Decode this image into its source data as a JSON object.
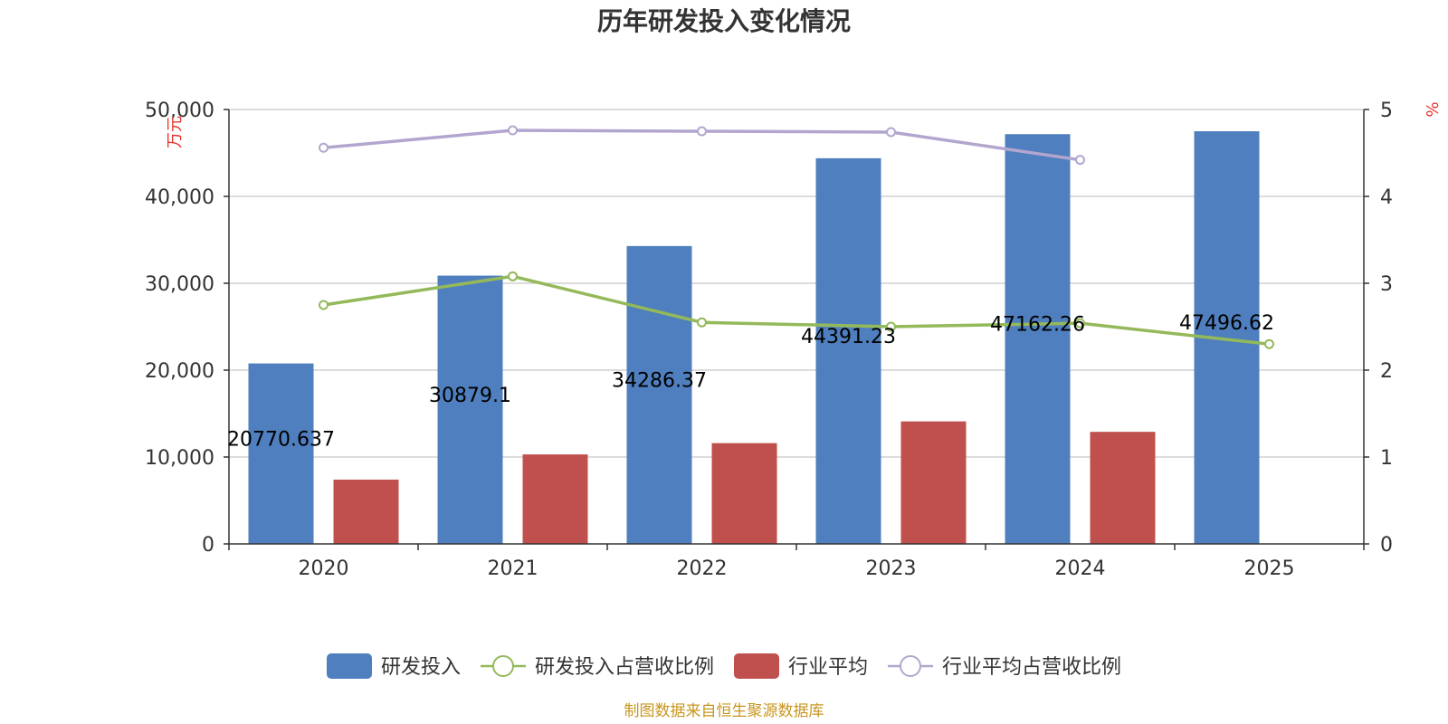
{
  "chart_data": {
    "type": "bar",
    "title": "历年研发投入变化情况",
    "categories": [
      "2020",
      "2021",
      "2022",
      "2023",
      "2024",
      "2025"
    ],
    "left_axis": {
      "unit": "万元",
      "ylim": [
        0,
        50000
      ],
      "ticks": [
        "0",
        "10,000",
        "20,000",
        "30,000",
        "40,000",
        "50,000"
      ]
    },
    "right_axis": {
      "unit": "%",
      "ylim": [
        0,
        5
      ],
      "ticks": [
        "0",
        "1",
        "2",
        "3",
        "4",
        "5"
      ]
    },
    "grid": true,
    "legend_position": "bottom",
    "series": [
      {
        "name": "研发投入",
        "type": "bar",
        "axis": "left",
        "color": "#4f7fbe",
        "values": [
          20770.637,
          30879.1,
          34286.37,
          44391.23,
          47162.26,
          47496.62
        ],
        "data_labels": [
          "20770.637",
          "30879.1",
          "34286.37",
          "44391.23",
          "47162.26",
          "47496.62"
        ]
      },
      {
        "name": "研发投入占营收比例",
        "type": "line",
        "axis": "right",
        "color": "#94b95a",
        "values": [
          2.75,
          3.08,
          2.55,
          2.5,
          2.54,
          2.3
        ]
      },
      {
        "name": "行业平均",
        "type": "bar",
        "axis": "left",
        "color": "#c0504d",
        "values": [
          7400,
          10300,
          11600,
          14100,
          12900,
          null
        ]
      },
      {
        "name": "行业平均占营收比例",
        "type": "line",
        "axis": "right",
        "color": "#b3a6ce",
        "values": [
          4.56,
          4.76,
          4.75,
          4.74,
          4.42,
          null
        ]
      }
    ]
  },
  "footer": {
    "source": "制图数据来自恒生聚源数据库"
  }
}
